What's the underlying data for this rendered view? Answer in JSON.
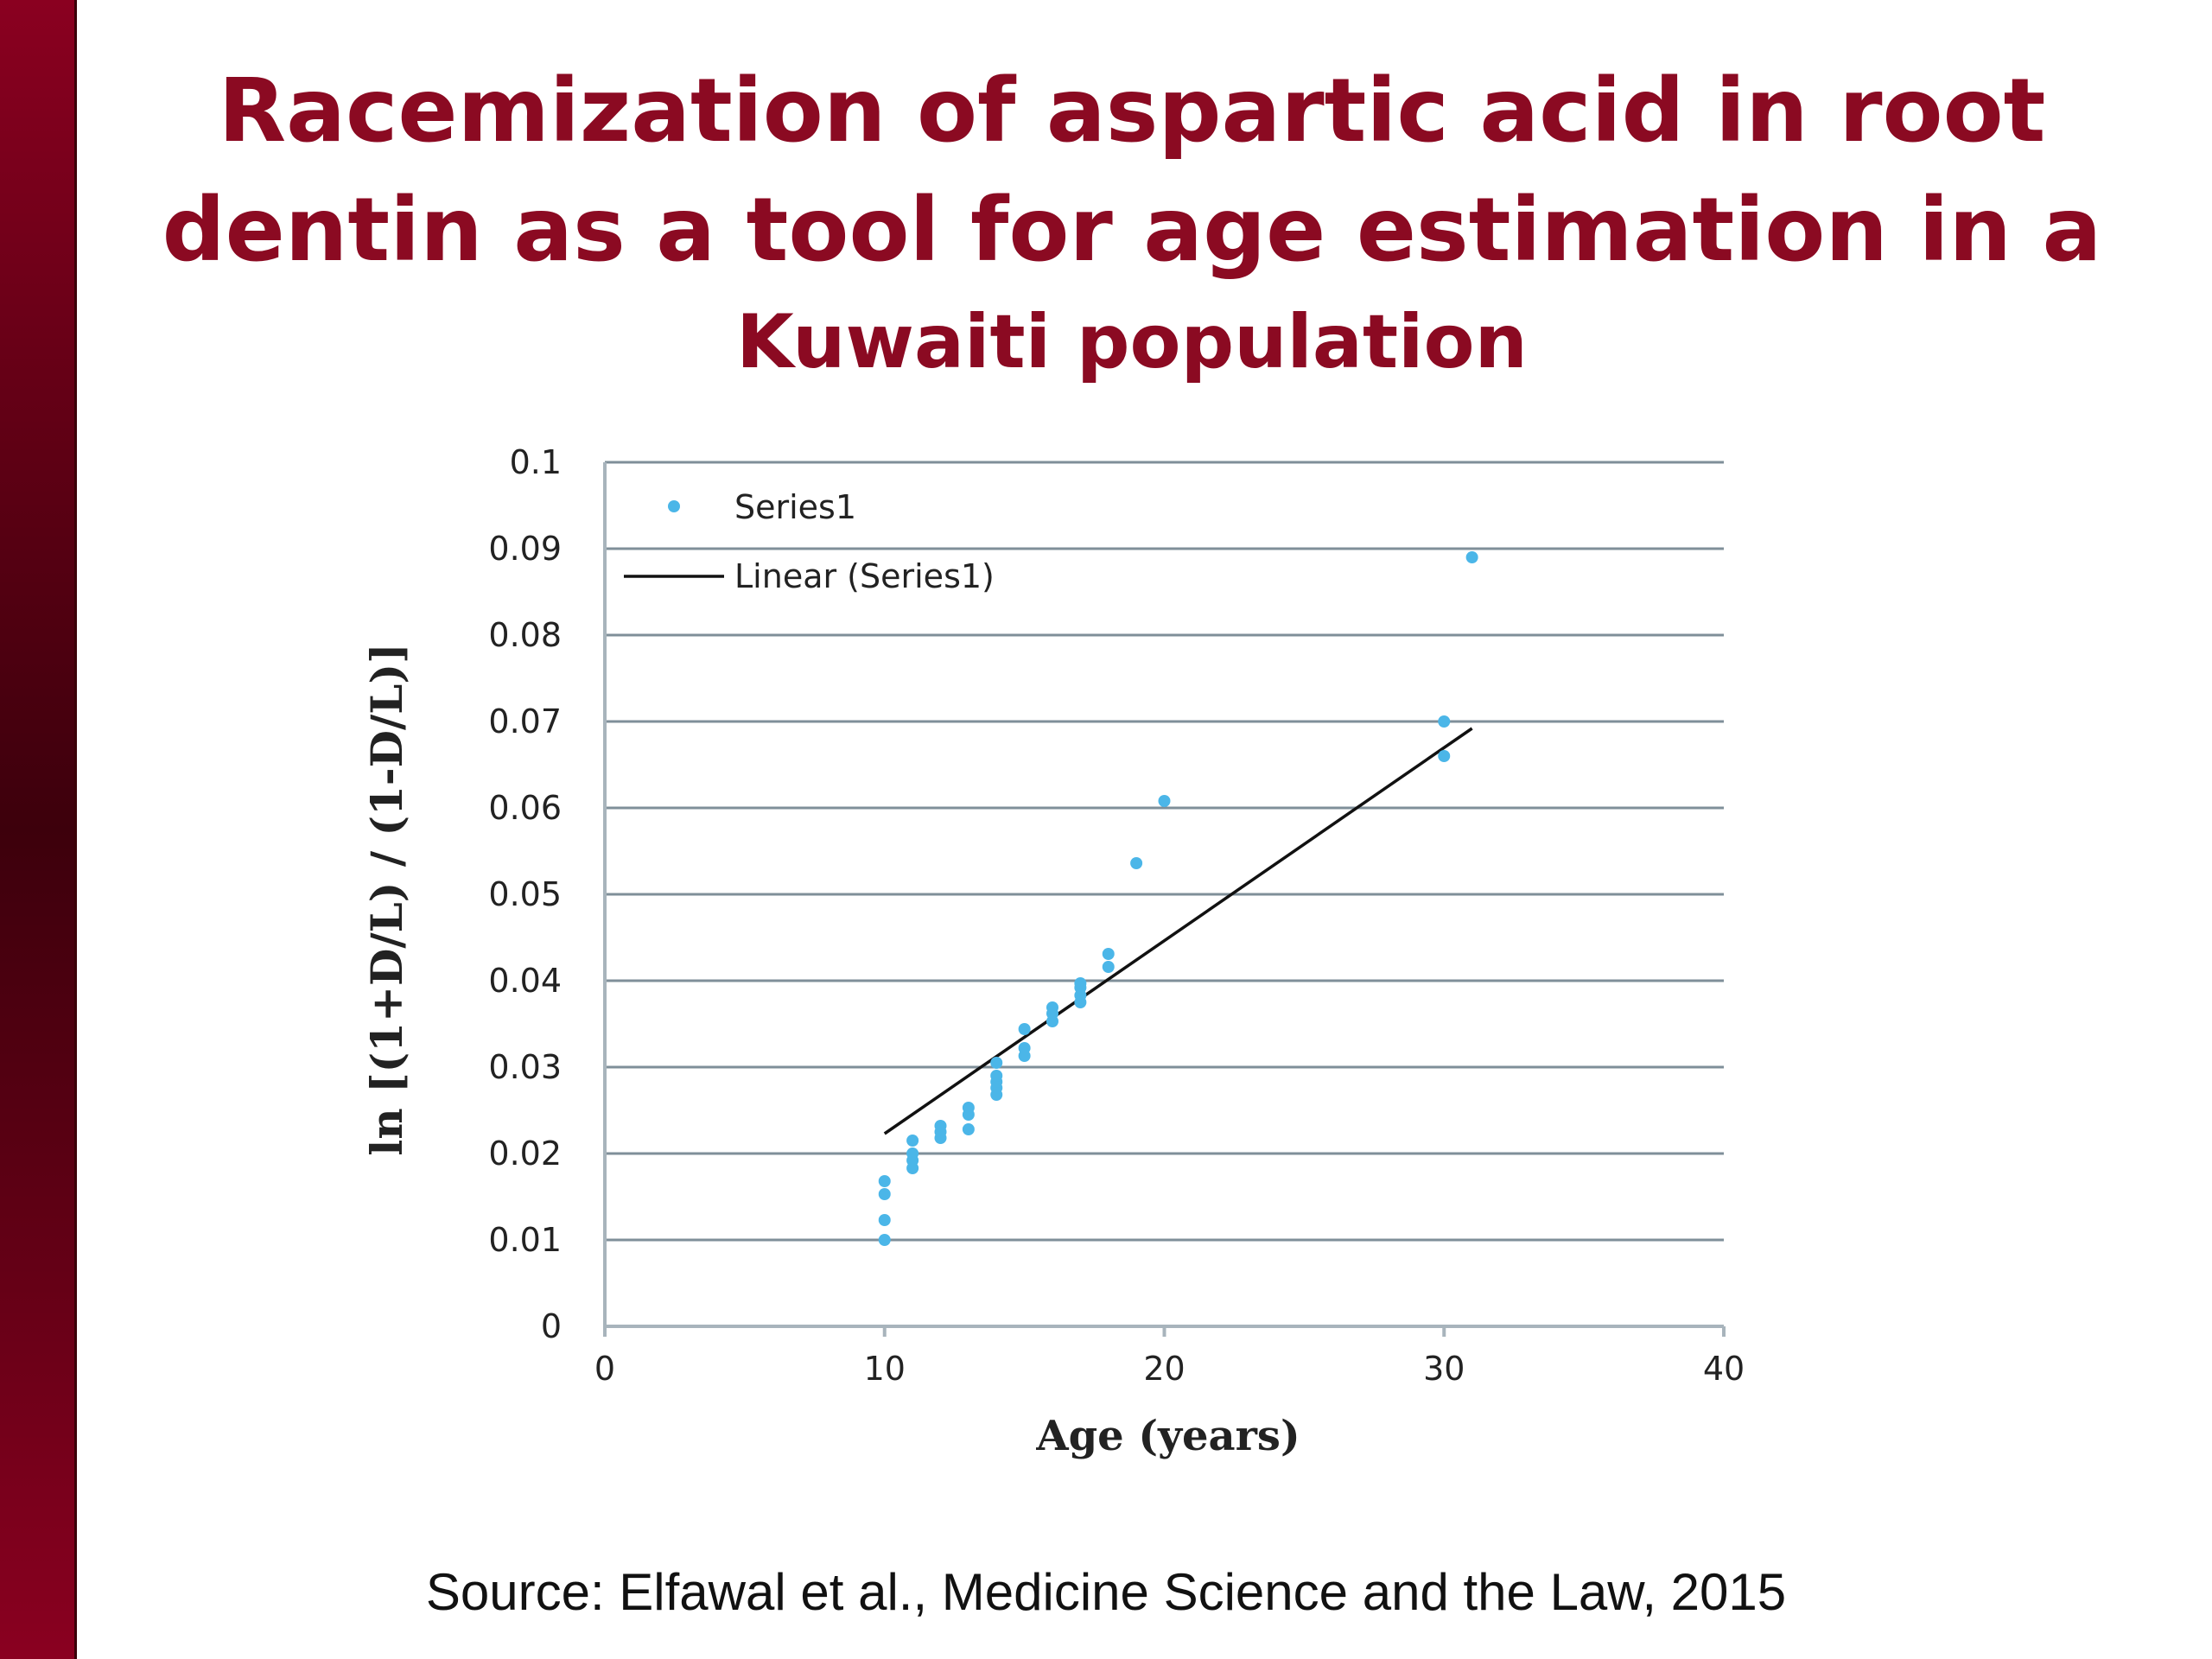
{
  "title": {
    "line1": "Racemization of aspartic acid in root",
    "line2": "dentin as a tool for age estimation in a",
    "line3": "Kuwaiti population"
  },
  "source": "Source: Elfawal et al., Medicine Science and the Law, 2015",
  "colors": {
    "title": "#8b0a22",
    "points": "#4bb6e8",
    "trendline": "#111111",
    "grid": "#7f8f99"
  },
  "chart_data": {
    "type": "scatter",
    "xlabel": "Age (years)",
    "ylabel": "ln [(1+D/L) / (1-D/L)]",
    "xlim": [
      0,
      40
    ],
    "ylim": [
      0,
      0.1
    ],
    "x_ticks": [
      0,
      10,
      20,
      30,
      40
    ],
    "y_ticks": [
      0,
      0.01,
      0.02,
      0.03,
      0.04,
      0.05,
      0.06,
      0.07,
      0.08,
      0.09,
      0.1
    ],
    "x_tick_labels": [
      "0",
      "10",
      "20",
      "30",
      "40"
    ],
    "y_tick_labels": [
      "0",
      "0.01",
      "0.02",
      "0.03",
      "0.04",
      "0.05",
      "0.06",
      "0.07",
      "0.08",
      "0.09",
      "0.1"
    ],
    "grid": "horizontal",
    "legend": {
      "placement": "top-left",
      "entries": [
        "Series1",
        "Linear (Series1)"
      ]
    },
    "series": [
      {
        "name": "Series1",
        "points": [
          [
            10,
            0.01
          ],
          [
            10,
            0.0123
          ],
          [
            10,
            0.0153
          ],
          [
            10,
            0.0168
          ],
          [
            11,
            0.0183
          ],
          [
            11,
            0.0192
          ],
          [
            11,
            0.02
          ],
          [
            11,
            0.0215
          ],
          [
            12,
            0.0218
          ],
          [
            12,
            0.0225
          ],
          [
            12,
            0.0232
          ],
          [
            13,
            0.0228
          ],
          [
            13,
            0.0245
          ],
          [
            13,
            0.0253
          ],
          [
            14,
            0.0268
          ],
          [
            14,
            0.0276
          ],
          [
            14,
            0.0283
          ],
          [
            14,
            0.029
          ],
          [
            14,
            0.0305
          ],
          [
            15,
            0.0313
          ],
          [
            15,
            0.0322
          ],
          [
            15,
            0.0344
          ],
          [
            16,
            0.0353
          ],
          [
            16,
            0.0362
          ],
          [
            16,
            0.0369
          ],
          [
            17,
            0.0375
          ],
          [
            17,
            0.0383
          ],
          [
            17,
            0.0392
          ],
          [
            17,
            0.0397
          ],
          [
            18,
            0.0416
          ],
          [
            18,
            0.0431
          ],
          [
            19,
            0.0536
          ],
          [
            20,
            0.0608
          ],
          [
            30,
            0.066
          ],
          [
            30,
            0.07
          ],
          [
            31,
            0.089
          ]
        ]
      }
    ],
    "trendline": {
      "name": "Linear (Series1)",
      "type": "linear",
      "x": [
        10,
        31
      ],
      "y": [
        0.0223,
        0.0692
      ]
    }
  }
}
